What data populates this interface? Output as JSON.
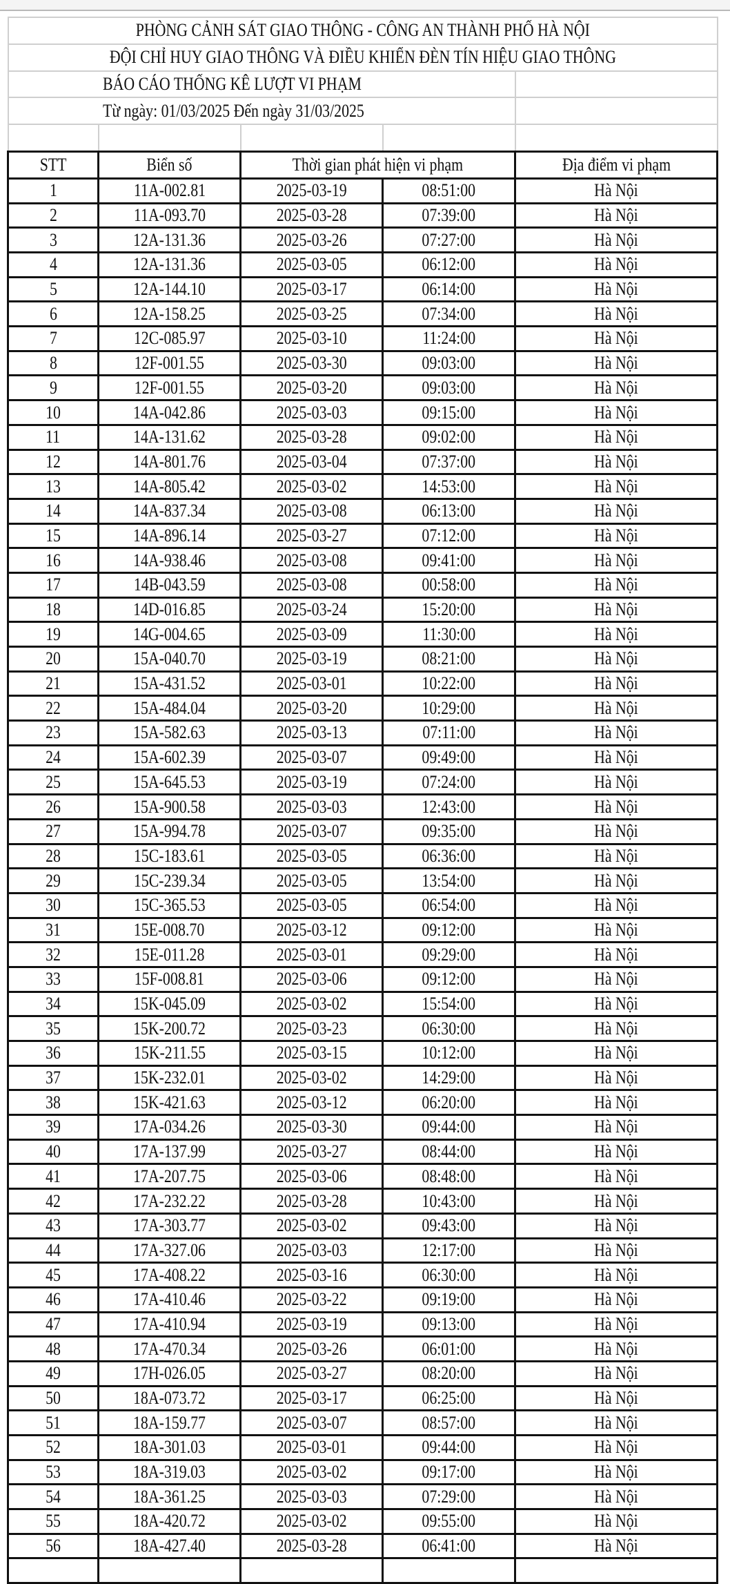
{
  "report": {
    "line1": "PHÒNG CẢNH SÁT GIAO THÔNG - CÔNG AN THÀNH PHỐ HÀ NỘI",
    "line2": "ĐỘI CHỈ HUY GIAO THÔNG VÀ ĐIỀU KHIỂN ĐÈN TÍN HIỆU GIAO THÔNG",
    "title": "BÁO CÁO THỐNG KÊ LƯỢT VI PHẠM",
    "date_range": "Từ ngày: 01/03/2025 Đến ngày 31/03/2025"
  },
  "columns": {
    "stt": "STT",
    "plate": "Biển số",
    "time": "Thời gian phát hiện vi phạm",
    "location": "Địa điểm vi phạm"
  },
  "rows": [
    [
      "1",
      "11A-002.81",
      "2025-03-19",
      "08:51:00",
      "Hà Nội"
    ],
    [
      "2",
      "11A-093.70",
      "2025-03-28",
      "07:39:00",
      "Hà Nội"
    ],
    [
      "3",
      "12A-131.36",
      "2025-03-26",
      "07:27:00",
      "Hà Nội"
    ],
    [
      "4",
      "12A-131.36",
      "2025-03-05",
      "06:12:00",
      "Hà Nội"
    ],
    [
      "5",
      "12A-144.10",
      "2025-03-17",
      "06:14:00",
      "Hà Nội"
    ],
    [
      "6",
      "12A-158.25",
      "2025-03-25",
      "07:34:00",
      "Hà Nội"
    ],
    [
      "7",
      "12C-085.97",
      "2025-03-10",
      "11:24:00",
      "Hà Nội"
    ],
    [
      "8",
      "12F-001.55",
      "2025-03-30",
      "09:03:00",
      "Hà Nội"
    ],
    [
      "9",
      "12F-001.55",
      "2025-03-20",
      "09:03:00",
      "Hà Nội"
    ],
    [
      "10",
      "14A-042.86",
      "2025-03-03",
      "09:15:00",
      "Hà Nội"
    ],
    [
      "11",
      "14A-131.62",
      "2025-03-28",
      "09:02:00",
      "Hà Nội"
    ],
    [
      "12",
      "14A-801.76",
      "2025-03-04",
      "07:37:00",
      "Hà Nội"
    ],
    [
      "13",
      "14A-805.42",
      "2025-03-02",
      "14:53:00",
      "Hà Nội"
    ],
    [
      "14",
      "14A-837.34",
      "2025-03-08",
      "06:13:00",
      "Hà Nội"
    ],
    [
      "15",
      "14A-896.14",
      "2025-03-27",
      "07:12:00",
      "Hà Nội"
    ],
    [
      "16",
      "14A-938.46",
      "2025-03-08",
      "09:41:00",
      "Hà Nội"
    ],
    [
      "17",
      "14B-043.59",
      "2025-03-08",
      "00:58:00",
      "Hà Nội"
    ],
    [
      "18",
      "14D-016.85",
      "2025-03-24",
      "15:20:00",
      "Hà Nội"
    ],
    [
      "19",
      "14G-004.65",
      "2025-03-09",
      "11:30:00",
      "Hà Nội"
    ],
    [
      "20",
      "15A-040.70",
      "2025-03-19",
      "08:21:00",
      "Hà Nội"
    ],
    [
      "21",
      "15A-431.52",
      "2025-03-01",
      "10:22:00",
      "Hà Nội"
    ],
    [
      "22",
      "15A-484.04",
      "2025-03-20",
      "10:29:00",
      "Hà Nội"
    ],
    [
      "23",
      "15A-582.63",
      "2025-03-13",
      "07:11:00",
      "Hà Nội"
    ],
    [
      "24",
      "15A-602.39",
      "2025-03-07",
      "09:49:00",
      "Hà Nội"
    ],
    [
      "25",
      "15A-645.53",
      "2025-03-19",
      "07:24:00",
      "Hà Nội"
    ],
    [
      "26",
      "15A-900.58",
      "2025-03-03",
      "12:43:00",
      "Hà Nội"
    ],
    [
      "27",
      "15A-994.78",
      "2025-03-07",
      "09:35:00",
      "Hà Nội"
    ],
    [
      "28",
      "15C-183.61",
      "2025-03-05",
      "06:36:00",
      "Hà Nội"
    ],
    [
      "29",
      "15C-239.34",
      "2025-03-05",
      "13:54:00",
      "Hà Nội"
    ],
    [
      "30",
      "15C-365.53",
      "2025-03-05",
      "06:54:00",
      "Hà Nội"
    ],
    [
      "31",
      "15E-008.70",
      "2025-03-12",
      "09:12:00",
      "Hà Nội"
    ],
    [
      "32",
      "15E-011.28",
      "2025-03-01",
      "09:29:00",
      "Hà Nội"
    ],
    [
      "33",
      "15F-008.81",
      "2025-03-06",
      "09:12:00",
      "Hà Nội"
    ],
    [
      "34",
      "15K-045.09",
      "2025-03-02",
      "15:54:00",
      "Hà Nội"
    ],
    [
      "35",
      "15K-200.72",
      "2025-03-23",
      "06:30:00",
      "Hà Nội"
    ],
    [
      "36",
      "15K-211.55",
      "2025-03-15",
      "10:12:00",
      "Hà Nội"
    ],
    [
      "37",
      "15K-232.01",
      "2025-03-02",
      "14:29:00",
      "Hà Nội"
    ],
    [
      "38",
      "15K-421.63",
      "2025-03-12",
      "06:20:00",
      "Hà Nội"
    ],
    [
      "39",
      "17A-034.26",
      "2025-03-30",
      "09:44:00",
      "Hà Nội"
    ],
    [
      "40",
      "17A-137.99",
      "2025-03-27",
      "08:44:00",
      "Hà Nội"
    ],
    [
      "41",
      "17A-207.75",
      "2025-03-06",
      "08:48:00",
      "Hà Nội"
    ],
    [
      "42",
      "17A-232.22",
      "2025-03-28",
      "10:43:00",
      "Hà Nội"
    ],
    [
      "43",
      "17A-303.77",
      "2025-03-02",
      "09:43:00",
      "Hà Nội"
    ],
    [
      "44",
      "17A-327.06",
      "2025-03-03",
      "12:17:00",
      "Hà Nội"
    ],
    [
      "45",
      "17A-408.22",
      "2025-03-16",
      "06:30:00",
      "Hà Nội"
    ],
    [
      "46",
      "17A-410.46",
      "2025-03-22",
      "09:19:00",
      "Hà Nội"
    ],
    [
      "47",
      "17A-410.94",
      "2025-03-19",
      "09:13:00",
      "Hà Nội"
    ],
    [
      "48",
      "17A-470.34",
      "2025-03-26",
      "06:01:00",
      "Hà Nội"
    ],
    [
      "49",
      "17H-026.05",
      "2025-03-27",
      "08:20:00",
      "Hà Nội"
    ],
    [
      "50",
      "18A-073.72",
      "2025-03-17",
      "06:25:00",
      "Hà Nội"
    ],
    [
      "51",
      "18A-159.77",
      "2025-03-07",
      "08:57:00",
      "Hà Nội"
    ],
    [
      "52",
      "18A-301.03",
      "2025-03-01",
      "09:44:00",
      "Hà Nội"
    ],
    [
      "53",
      "18A-319.03",
      "2025-03-02",
      "09:17:00",
      "Hà Nội"
    ],
    [
      "54",
      "18A-361.25",
      "2025-03-03",
      "07:29:00",
      "Hà Nội"
    ],
    [
      "55",
      "18A-420.72",
      "2025-03-02",
      "09:55:00",
      "Hà Nội"
    ],
    [
      "56",
      "18A-427.40",
      "2025-03-28",
      "06:41:00",
      "Hà Nội"
    ]
  ]
}
